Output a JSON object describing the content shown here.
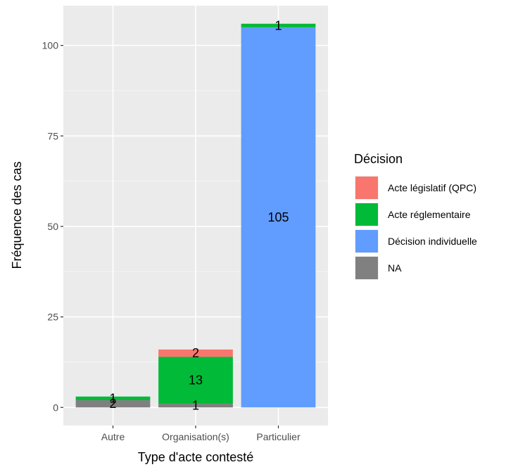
{
  "chart_data": {
    "type": "bar",
    "stacked": true,
    "xlabel": "Type d'acte contesté",
    "ylabel": "Fréquence des cas",
    "categories": [
      "Autre",
      "Organisation(s)",
      "Particulier"
    ],
    "ylim": [
      -5,
      111
    ],
    "yticks": [
      0,
      25,
      50,
      75,
      100
    ],
    "grid": true,
    "legend": {
      "title": "Décision",
      "placement": "right"
    },
    "series": [
      {
        "name": "Acte législatif (QPC)",
        "color": "#F8766D",
        "values": [
          0,
          2,
          0
        ]
      },
      {
        "name": "Acte réglementaire",
        "color": "#00BA38",
        "values": [
          1,
          13,
          1
        ]
      },
      {
        "name": "Décision individuelle",
        "color": "#619CFF",
        "values": [
          0,
          0,
          105
        ]
      },
      {
        "name": "NA",
        "color": "#808080",
        "values": [
          2,
          1,
          0
        ]
      }
    ]
  }
}
